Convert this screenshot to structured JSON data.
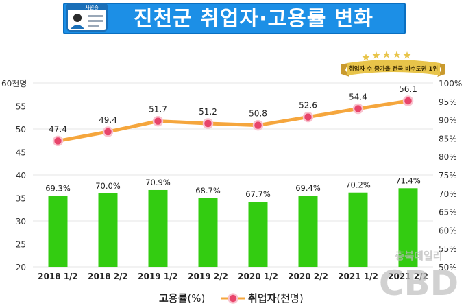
{
  "header": {
    "title": "진천군 취업자·고용률 변화",
    "card_label": "사원증",
    "card_icon": "id-card-icon",
    "accent_color": "#1c8fe6"
  },
  "badge": {
    "text": "취업자 수 증가율 전국 비수도권 1위",
    "icon": "ribbon-stars-icon",
    "color": "#e8c44a"
  },
  "chart_data": {
    "type": "bar",
    "categories": [
      "2018 1/2",
      "2018 2/2",
      "2019 1/2",
      "2019 2/2",
      "2020 1/2",
      "2020 2/2",
      "2021 1/2",
      "2021 2/2"
    ],
    "series": [
      {
        "name": "고용률(%)",
        "type": "bar",
        "axis": "right",
        "color": "#33cc11",
        "values": [
          69.3,
          70.0,
          70.9,
          68.7,
          67.7,
          69.4,
          70.2,
          71.4
        ],
        "labels": [
          "69.3%",
          "70.0%",
          "70.9%",
          "68.7%",
          "67.7%",
          "69.4%",
          "70.2%",
          "71.4%"
        ]
      },
      {
        "name": "취업자(천명)",
        "type": "line",
        "axis": "left",
        "color": "#f5a63d",
        "marker_color": "#e8456b",
        "values": [
          47.4,
          49.4,
          51.7,
          51.2,
          50.8,
          52.6,
          54.4,
          56.1
        ],
        "labels": [
          "47.4",
          "49.4",
          "51.7",
          "51.2",
          "50.8",
          "52.6",
          "54.4",
          "56.1"
        ]
      }
    ],
    "left_axis": {
      "ylim": [
        20,
        60
      ],
      "ticks": [
        "20",
        "25",
        "30",
        "35",
        "40",
        "45",
        "50",
        "55",
        "60천명"
      ]
    },
    "right_axis": {
      "ylim": [
        50,
        100
      ],
      "ticks": [
        "50%",
        "55%",
        "60%",
        "65%",
        "70%",
        "75%",
        "80%",
        "85%",
        "90%",
        "95%",
        "100%"
      ]
    },
    "grid": "horizontal",
    "legend_position": "bottom"
  },
  "legend": {
    "bar_label": "고용률",
    "bar_unit": "(%)",
    "line_label": "취업자",
    "line_unit": "(천명)"
  },
  "watermark": {
    "line1": "충북데일리",
    "line2": "CBD"
  }
}
